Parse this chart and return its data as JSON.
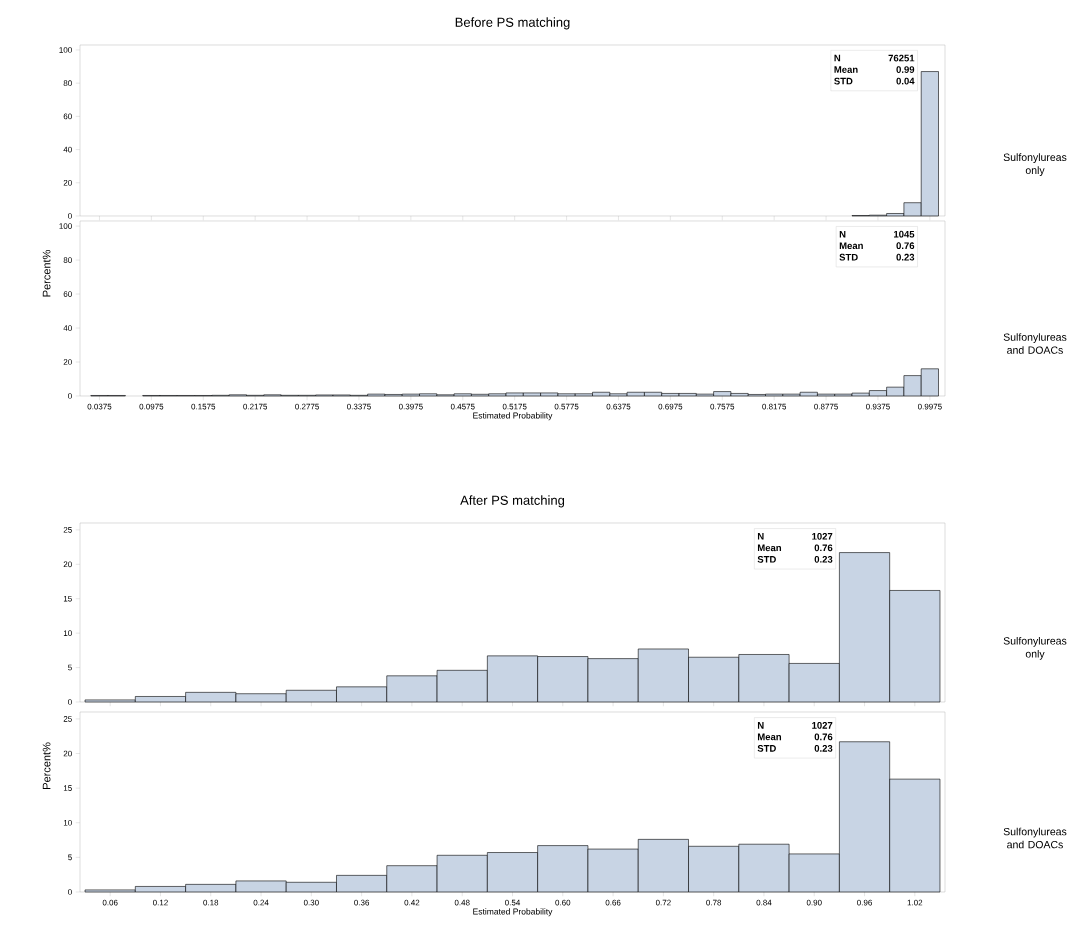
{
  "chart_data": [
    {
      "type": "histogram",
      "title": "Before PS matching",
      "color": "#c8d4e4",
      "bins": [
        0.0275,
        0.0475,
        0.0675,
        0.0875,
        0.1075,
        0.1275,
        0.1475,
        0.1675,
        0.1875,
        0.2075,
        0.2275,
        0.2475,
        0.2675,
        0.2875,
        0.3075,
        0.3275,
        0.3475,
        0.3675,
        0.3875,
        0.4075,
        0.4275,
        0.4475,
        0.4675,
        0.4875,
        0.5075,
        0.5275,
        0.5475,
        0.5675,
        0.5875,
        0.6075,
        0.6275,
        0.6475,
        0.6675,
        0.6875,
        0.7075,
        0.7275,
        0.7475,
        0.7675,
        0.7875,
        0.8075,
        0.8275,
        0.8475,
        0.8675,
        0.8875,
        0.9075,
        0.9275,
        0.9475,
        0.9675,
        0.9875,
        1.0075
      ],
      "values": [
        0,
        0,
        0,
        0,
        0,
        0,
        0,
        0,
        0,
        0,
        0,
        0,
        0,
        0,
        0,
        0,
        0,
        0,
        0,
        0,
        0,
        0,
        0,
        0,
        0,
        0,
        0,
        0,
        0,
        0,
        0,
        0,
        0,
        0,
        0,
        0,
        0,
        0,
        0,
        0,
        0,
        0,
        0,
        0,
        0.3,
        0.5,
        1.5,
        8,
        87
      ],
      "xlim": [
        0.015,
        1.015
      ],
      "ylim": [
        0,
        103
      ],
      "xticks": [
        0.0375,
        0.0975,
        0.1575,
        0.2175,
        0.2775,
        0.3375,
        0.3975,
        0.4575,
        0.5175,
        0.5775,
        0.6375,
        0.6975,
        0.7575,
        0.8175,
        0.8775,
        0.9375,
        0.9975
      ],
      "yticks": [
        0,
        20,
        40,
        60,
        80,
        100
      ],
      "tick_labels": "y",
      "annotations": [
        "Sulfonylureas only",
        "N",
        "76251",
        "Mean",
        "0.99",
        "STD",
        "0.04"
      ]
    },
    {
      "type": "histogram",
      "xlabel": "Estimated Probability",
      "ylabel": "Percent%",
      "color": "#c8d4e4",
      "bins": [
        0.0275,
        0.0475,
        0.0675,
        0.0875,
        0.1075,
        0.1275,
        0.1475,
        0.1675,
        0.1875,
        0.2075,
        0.2275,
        0.2475,
        0.2675,
        0.2875,
        0.3075,
        0.3275,
        0.3475,
        0.3675,
        0.3875,
        0.4075,
        0.4275,
        0.4475,
        0.4675,
        0.4875,
        0.5075,
        0.5275,
        0.5475,
        0.5675,
        0.5875,
        0.6075,
        0.6275,
        0.6475,
        0.6675,
        0.6875,
        0.7075,
        0.7275,
        0.7475,
        0.7675,
        0.7875,
        0.8075,
        0.8275,
        0.8475,
        0.8675,
        0.8875,
        0.9075,
        0.9275,
        0.9475,
        0.9675,
        0.9875,
        1.0075
      ],
      "values": [
        0.3,
        0.3,
        0,
        0.3,
        0.3,
        0.3,
        0.3,
        0.4,
        0.7,
        0.4,
        0.7,
        0.4,
        0.4,
        0.6,
        0.6,
        0.4,
        1.1,
        0.9,
        1.1,
        1.3,
        0.7,
        1.3,
        1.0,
        1.3,
        1.8,
        1.8,
        1.8,
        1.3,
        1.3,
        2.2,
        1.3,
        2.2,
        2.2,
        1.5,
        1.5,
        1.1,
        2.6,
        1.5,
        0.9,
        1.1,
        1.1,
        2.2,
        1.1,
        1.1,
        1.7,
        3.2,
        5.2,
        12,
        16
      ],
      "xlim": [
        0.015,
        1.015
      ],
      "ylim": [
        0,
        103
      ],
      "xticks": [
        0.0375,
        0.0975,
        0.1575,
        0.2175,
        0.2775,
        0.3375,
        0.3975,
        0.4575,
        0.5175,
        0.5775,
        0.6375,
        0.6975,
        0.7575,
        0.8175,
        0.8775,
        0.9375,
        0.9975
      ],
      "yticks": [
        0,
        20,
        40,
        60,
        80,
        100
      ],
      "annotations": [
        "Sulfonylureas and DOACs",
        "N",
        "1045",
        "Mean",
        "0.76",
        "STD",
        "0.23"
      ]
    },
    {
      "type": "histogram",
      "title": "After PS matching",
      "color": "#c8d4e4",
      "bins": [
        0.03,
        0.09,
        0.15,
        0.21,
        0.27,
        0.33,
        0.39,
        0.45,
        0.51,
        0.57,
        0.63,
        0.69,
        0.75,
        0.81,
        0.87,
        0.93,
        0.99,
        1.05
      ],
      "values": [
        0.3,
        0.8,
        1.4,
        1.2,
        1.7,
        2.2,
        3.8,
        4.6,
        6.7,
        6.6,
        6.3,
        7.7,
        6.5,
        6.9,
        5.6,
        21.7,
        16.2
      ],
      "xlim": [
        0.024,
        1.056
      ],
      "ylim": [
        0,
        26
      ],
      "xticks": [
        0.06,
        0.12,
        0.18,
        0.24,
        0.3,
        0.36,
        0.42,
        0.48,
        0.54,
        0.6,
        0.66,
        0.72,
        0.78,
        0.84,
        0.9,
        0.96,
        1.02
      ],
      "yticks": [
        0,
        5,
        10,
        15,
        20,
        25
      ],
      "tick_labels": "y",
      "annotations": [
        "Sulfonylureas only",
        "N",
        "1027",
        "Mean",
        "0.76",
        "STD",
        "0.23"
      ]
    },
    {
      "type": "histogram",
      "xlabel": "Estimated Probability",
      "ylabel": "Percent%",
      "color": "#c8d4e4",
      "bins": [
        0.03,
        0.09,
        0.15,
        0.21,
        0.27,
        0.33,
        0.39,
        0.45,
        0.51,
        0.57,
        0.63,
        0.69,
        0.75,
        0.81,
        0.87,
        0.93,
        0.99,
        1.05
      ],
      "values": [
        0.3,
        0.8,
        1.1,
        1.6,
        1.4,
        2.4,
        3.8,
        5.3,
        5.7,
        6.7,
        6.2,
        7.6,
        6.6,
        6.9,
        5.5,
        21.7,
        16.3
      ],
      "xlim": [
        0.024,
        1.056
      ],
      "ylim": [
        0,
        26
      ],
      "xticks": [
        0.06,
        0.12,
        0.18,
        0.24,
        {
          "value": 0.3,
          "label": "0.30"
        },
        0.36,
        0.42,
        0.48,
        0.54,
        {
          "value": 0.6,
          "label": "0.60"
        },
        0.66,
        0.72,
        0.78,
        0.84,
        {
          "value": 0.9,
          "label": "0.90"
        },
        0.96,
        1.02
      ],
      "yticks": [
        0,
        5,
        10,
        15,
        20,
        25
      ],
      "annotations": [
        "Sulfonylureas and DOACs",
        "N",
        "1027",
        "Mean",
        "0.76",
        "STD",
        "0.23"
      ]
    }
  ]
}
